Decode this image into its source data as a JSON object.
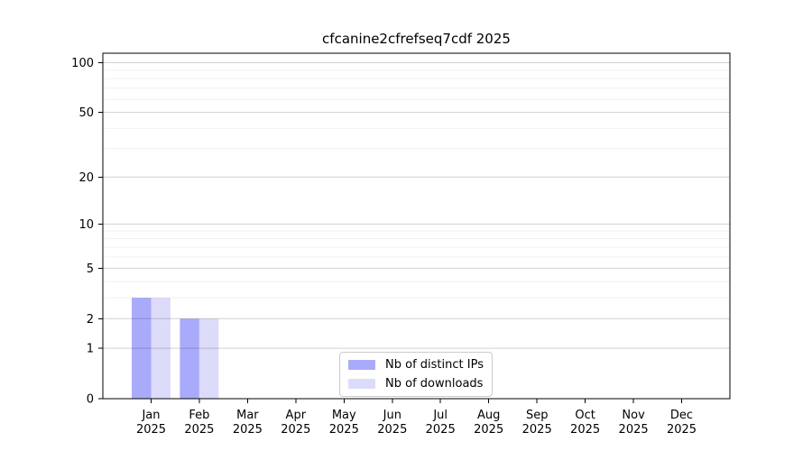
{
  "chart_data": {
    "type": "bar",
    "title": "cfcanine2cfrefseq7cdf 2025",
    "categories": [
      "Jan",
      "Feb",
      "Mar",
      "Apr",
      "May",
      "Jun",
      "Jul",
      "Aug",
      "Sep",
      "Oct",
      "Nov",
      "Dec"
    ],
    "x_sublabel": "2025",
    "series": [
      {
        "name": "Nb of distinct IPs",
        "color": "#aaaafa",
        "values": [
          3,
          2,
          0,
          0,
          0,
          0,
          0,
          0,
          0,
          0,
          0,
          0
        ]
      },
      {
        "name": "Nb of downloads",
        "color": "#dcdcfa",
        "values": [
          3,
          2,
          0,
          0,
          0,
          0,
          0,
          0,
          0,
          0,
          0,
          0
        ]
      }
    ],
    "yscale": "log1p",
    "ylim": [
      0,
      114
    ],
    "y_major_ticks": [
      0,
      1,
      2,
      5,
      10,
      20,
      50,
      100
    ],
    "y_minor_ticks": [
      3,
      4,
      6,
      7,
      8,
      9,
      30,
      40,
      60,
      70,
      80,
      90
    ],
    "xlabel": "",
    "ylabel": "",
    "grid": true,
    "grid_above_bars": true,
    "legend_position": "lower center",
    "colors": {
      "spine": "#000000",
      "tick_text": "#000000",
      "grid_major": "#000000",
      "grid_major_opacity": 0.18,
      "grid_minor": "#000000",
      "grid_minor_opacity": 0.06,
      "background": "#ffffff"
    }
  }
}
